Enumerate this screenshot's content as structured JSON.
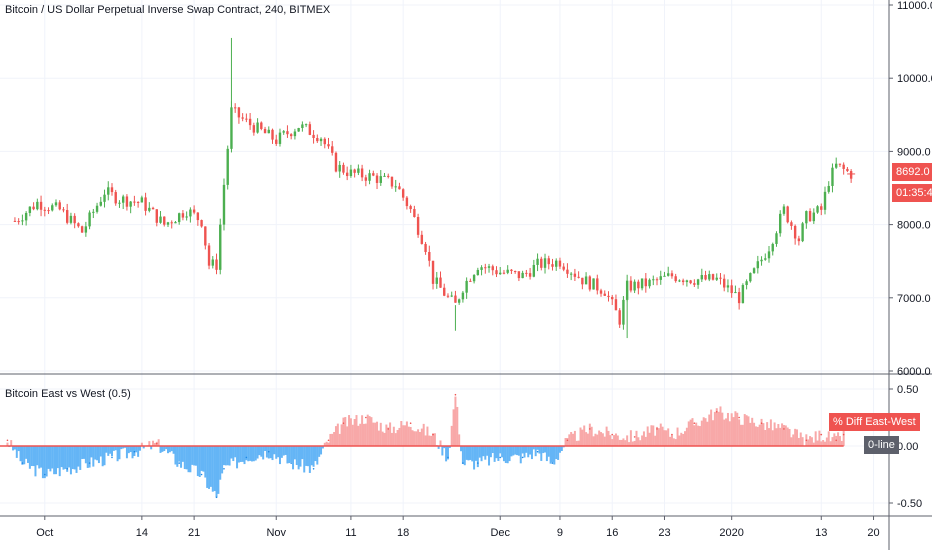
{
  "header": {
    "title": "Bitcoin / US Dollar Perpetual Inverse Swap Contract, 240, BITMEX"
  },
  "indicator": {
    "title": "Bitcoin East vs West (0.5)",
    "legend_label": "% Diff East-West",
    "zero_label": "0-line"
  },
  "price_badges": {
    "last_price": "8692.0",
    "countdown": "01:35:40"
  },
  "colors": {
    "up": "#26a69a",
    "up_candle": "#4caf50",
    "down": "#ef5350",
    "positive_area": "#f8a8a8",
    "negative_area": "#64b5f6",
    "zero_line": "#ef5350",
    "badge_red": "#ef5350",
    "badge_gray": "#5d606b"
  },
  "chart_data": [
    {
      "type": "candlestick",
      "title": "Bitcoin / US Dollar Perpetual Inverse Swap Contract, 240, BITMEX",
      "x_tick_labels": [
        "Oct",
        "14",
        "21",
        "Nov",
        "11",
        "18",
        "Dec",
        "9",
        "16",
        "23",
        "2020",
        "13",
        "20"
      ],
      "y_tick_labels": [
        "11000.0",
        "10000.0",
        "9000.0",
        "8000.0",
        "7000.0",
        "6000.0"
      ],
      "ylim": [
        6000,
        11000
      ],
      "close_path": [
        [
          "Sep 27",
          8050
        ],
        [
          "Sep 30",
          8300
        ],
        [
          "Oct 3",
          8200
        ],
        [
          "Oct 6",
          7900
        ],
        [
          "Oct 9",
          8450
        ],
        [
          "Oct 11",
          8350
        ],
        [
          "Oct 14",
          8300
        ],
        [
          "Oct 17",
          8000
        ],
        [
          "Oct 20",
          8200
        ],
        [
          "Oct 22",
          8050
        ],
        [
          "Oct 23",
          7450
        ],
        [
          "Oct 24",
          7450
        ],
        [
          "Oct 25",
          8550
        ],
        [
          "Oct 26",
          9550
        ],
        [
          "Oct 28",
          9400
        ],
        [
          "Nov 1",
          9150
        ],
        [
          "Nov 4",
          9350
        ],
        [
          "Nov 7",
          9200
        ],
        [
          "Nov 9",
          8800
        ],
        [
          "Nov 11",
          8700
        ],
        [
          "Nov 14",
          8650
        ],
        [
          "Nov 17",
          8550
        ],
        [
          "Nov 19",
          8200
        ],
        [
          "Nov 21",
          7700
        ],
        [
          "Nov 22",
          7250
        ],
        [
          "Nov 24",
          7000
        ],
        [
          "Nov 25",
          6900
        ],
        [
          "Nov 26",
          7150
        ],
        [
          "Nov 28",
          7450
        ],
        [
          "Dec 1",
          7350
        ],
        [
          "Dec 4",
          7300
        ],
        [
          "Dec 6",
          7450
        ],
        [
          "Dec 9",
          7500
        ],
        [
          "Dec 12",
          7250
        ],
        [
          "Dec 15",
          7100
        ],
        [
          "Dec 17",
          6700
        ],
        [
          "Dec 18",
          7150
        ],
        [
          "Dec 21",
          7200
        ],
        [
          "Dec 24",
          7300
        ],
        [
          "Dec 27",
          7250
        ],
        [
          "Dec 30",
          7250
        ],
        [
          "Jan 2",
          7000
        ],
        [
          "Jan 4",
          7350
        ],
        [
          "Jan 6",
          7700
        ],
        [
          "Jan 8",
          8200
        ],
        [
          "Jan 10",
          7800
        ],
        [
          "Jan 11",
          8100
        ],
        [
          "Jan 13",
          8200
        ],
        [
          "Jan 14",
          8600
        ],
        [
          "Jan 15",
          8800
        ],
        [
          "Jan 17",
          8692
        ]
      ],
      "spikes": [
        {
          "x": "Oct 26",
          "high": 10550
        },
        {
          "x": "Nov 25",
          "low": 6550
        },
        {
          "x": "Dec 18",
          "low": 6450
        }
      ]
    },
    {
      "type": "area",
      "title": "Bitcoin East vs West (0.5)",
      "series": [
        {
          "name": "% Diff East-West",
          "x": [
            "Sep 26",
            "Sep 28",
            "Oct 1",
            "Oct 4",
            "Oct 7",
            "Oct 10",
            "Oct 13",
            "Oct 16",
            "Oct 19",
            "Oct 22",
            "Oct 24",
            "Oct 25",
            "Oct 28",
            "Oct 31",
            "Nov 3",
            "Nov 6",
            "Nov 8",
            "Nov 10",
            "Nov 13",
            "Nov 16",
            "Nov 19",
            "Nov 22",
            "Nov 24",
            "Nov 25",
            "Nov 26",
            "Nov 28",
            "Dec 1",
            "Dec 4",
            "Dec 6",
            "Dec 8",
            "Dec 10",
            "Dec 13",
            "Dec 16",
            "Dec 19",
            "Dec 22",
            "Dec 24",
            "Dec 27",
            "Dec 30",
            "Jan 2",
            "Jan 5",
            "Jan 8",
            "Jan 11",
            "Jan 13",
            "Jan 15",
            "Jan 16"
          ],
          "values": [
            0.05,
            -0.15,
            -0.25,
            -0.2,
            -0.15,
            -0.1,
            -0.05,
            0.02,
            -0.15,
            -0.25,
            -0.45,
            -0.2,
            -0.1,
            -0.05,
            -0.15,
            -0.2,
            0.05,
            0.2,
            0.25,
            0.15,
            0.2,
            0.1,
            -0.1,
            0.45,
            -0.15,
            -0.15,
            -0.1,
            -0.1,
            -0.05,
            -0.15,
            0.05,
            0.15,
            0.1,
            0.08,
            0.15,
            0.1,
            0.2,
            0.3,
            0.25,
            0.2,
            0.15,
            0.05,
            0.1,
            0.05,
            0.1
          ]
        }
      ],
      "y_tick_labels": [
        "0.50",
        "0.00",
        "-0.50"
      ],
      "ylim": [
        -0.6,
        0.55
      ]
    }
  ]
}
